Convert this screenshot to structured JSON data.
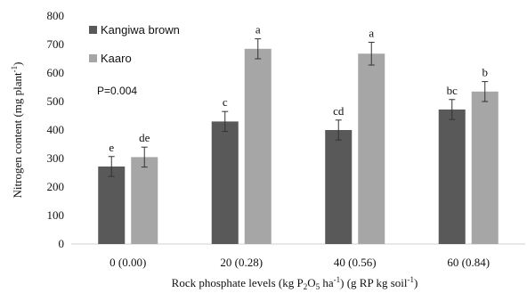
{
  "chart_data": {
    "type": "bar",
    "title": "",
    "categories": [
      "0 (0.00)",
      "20 (0.28)",
      "40 (0.56)",
      "60 (0.84)"
    ],
    "series": [
      {
        "name": "Kangiwa brown",
        "values": [
          272,
          430,
          400,
          472
        ],
        "errors": [
          35,
          35,
          35,
          35
        ],
        "letters": [
          "e",
          "c",
          "cd",
          "bc"
        ],
        "color": "#595959"
      },
      {
        "name": "Kaaro",
        "values": [
          305,
          685,
          668,
          535
        ],
        "errors": [
          35,
          35,
          40,
          35
        ],
        "letters": [
          "de",
          "a",
          "a",
          "b"
        ],
        "color": "#a6a6a6"
      }
    ],
    "ylim": [
      0,
      800
    ],
    "yticks": [
      0,
      100,
      200,
      300,
      400,
      500,
      600,
      700,
      800
    ],
    "ylabel": {
      "prefix": "Nitrogen content  (mg plant",
      "sup": "-1",
      "suffix": ")"
    },
    "xlabel": {
      "t1": "Rock phosphate levels  (kg P",
      "sub1": "2",
      "t2": "O",
      "sub2": "5",
      "t3": " ha",
      "sup1": "-1",
      "t4": ") (g RP kg soil",
      "sup2": "-1",
      "t5": ")"
    },
    "annotation": "P=0.004",
    "grid": false,
    "legend": "top-left"
  }
}
